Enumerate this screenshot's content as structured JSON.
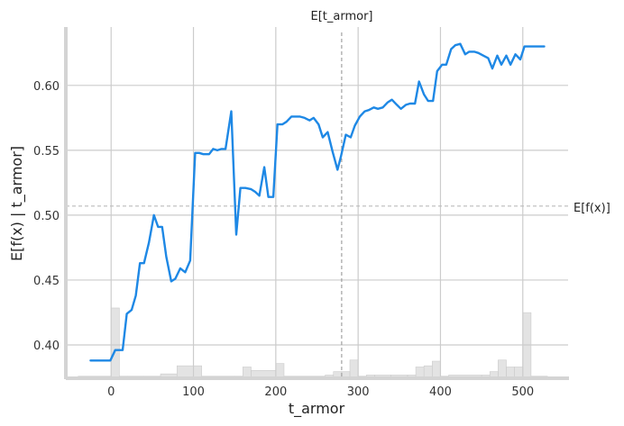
{
  "chart_data": {
    "type": "line",
    "xlabel": "t_armor",
    "ylabel": "E[f(x) | t_armor]",
    "xlim": [
      -55,
      555
    ],
    "ylim": [
      0.375,
      0.645
    ],
    "x_ticks": [
      0,
      100,
      200,
      300,
      400,
      500
    ],
    "x_tick_labels": [
      "0",
      "100",
      "200",
      "300",
      "400",
      "500"
    ],
    "y_ticks": [
      0.4,
      0.45,
      0.5,
      0.55,
      0.6
    ],
    "y_tick_labels": [
      "0.40",
      "0.45",
      "0.50",
      "0.55",
      "0.60"
    ],
    "grid": true,
    "reference_lines": {
      "vertical": {
        "label": "E[t_armor]",
        "x": 280
      },
      "horizontal": {
        "label": "E[f(x)]",
        "y": 0.507
      }
    },
    "series": [
      {
        "color": "#1e88e5",
        "points": [
          [
            -25,
            0.388
          ],
          [
            -1,
            0.388
          ],
          [
            5,
            0.396
          ],
          [
            14,
            0.396
          ],
          [
            19,
            0.424
          ],
          [
            25,
            0.427
          ],
          [
            30,
            0.438
          ],
          [
            35,
            0.463
          ],
          [
            40,
            0.463
          ],
          [
            46,
            0.479
          ],
          [
            52,
            0.5
          ],
          [
            57,
            0.491
          ],
          [
            62,
            0.491
          ],
          [
            67,
            0.468
          ],
          [
            73,
            0.449
          ],
          [
            78,
            0.451
          ],
          [
            84,
            0.459
          ],
          [
            90,
            0.456
          ],
          [
            96,
            0.465
          ],
          [
            102,
            0.548
          ],
          [
            107,
            0.548
          ],
          [
            112,
            0.547
          ],
          [
            119,
            0.547
          ],
          [
            124,
            0.551
          ],
          [
            129,
            0.55
          ],
          [
            134,
            0.551
          ],
          [
            139,
            0.551
          ],
          [
            146,
            0.58
          ],
          [
            152,
            0.485
          ],
          [
            157,
            0.521
          ],
          [
            163,
            0.521
          ],
          [
            170,
            0.52
          ],
          [
            175,
            0.518
          ],
          [
            180,
            0.515
          ],
          [
            186,
            0.537
          ],
          [
            191,
            0.514
          ],
          [
            197,
            0.514
          ],
          [
            202,
            0.57
          ],
          [
            208,
            0.57
          ],
          [
            213,
            0.572
          ],
          [
            219,
            0.576
          ],
          [
            224,
            0.576
          ],
          [
            229,
            0.576
          ],
          [
            235,
            0.575
          ],
          [
            241,
            0.573
          ],
          [
            246,
            0.575
          ],
          [
            252,
            0.57
          ],
          [
            257,
            0.56
          ],
          [
            263,
            0.564
          ],
          [
            269,
            0.549
          ],
          [
            275,
            0.535
          ],
          [
            279,
            0.545
          ],
          [
            285,
            0.562
          ],
          [
            291,
            0.56
          ],
          [
            296,
            0.569
          ],
          [
            302,
            0.576
          ],
          [
            308,
            0.58
          ],
          [
            313,
            0.581
          ],
          [
            319,
            0.583
          ],
          [
            324,
            0.582
          ],
          [
            330,
            0.583
          ],
          [
            336,
            0.587
          ],
          [
            341,
            0.589
          ],
          [
            347,
            0.585
          ],
          [
            352,
            0.582
          ],
          [
            358,
            0.585
          ],
          [
            363,
            0.586
          ],
          [
            369,
            0.586
          ],
          [
            374,
            0.603
          ],
          [
            380,
            0.593
          ],
          [
            385,
            0.588
          ],
          [
            391,
            0.588
          ],
          [
            396,
            0.611
          ],
          [
            402,
            0.616
          ],
          [
            407,
            0.616
          ],
          [
            413,
            0.628
          ],
          [
            418,
            0.631
          ],
          [
            424,
            0.632
          ],
          [
            430,
            0.624
          ],
          [
            435,
            0.626
          ],
          [
            441,
            0.626
          ],
          [
            446,
            0.625
          ],
          [
            452,
            0.623
          ],
          [
            458,
            0.621
          ],
          [
            463,
            0.613
          ],
          [
            469,
            0.623
          ],
          [
            474,
            0.616
          ],
          [
            480,
            0.623
          ],
          [
            485,
            0.616
          ],
          [
            491,
            0.624
          ],
          [
            497,
            0.62
          ],
          [
            502,
            0.63
          ],
          [
            508,
            0.63
          ],
          [
            514,
            0.63
          ],
          [
            520,
            0.63
          ],
          [
            526,
            0.63
          ]
        ]
      }
    ],
    "histogram": {
      "color": "#cccccc",
      "bins": [
        [
          -40,
          0,
          0.01
        ],
        [
          0,
          10,
          0.6
        ],
        [
          10,
          20,
          0.01
        ],
        [
          20,
          40,
          0.01
        ],
        [
          40,
          60,
          0.01
        ],
        [
          60,
          80,
          0.03
        ],
        [
          80,
          100,
          0.1
        ],
        [
          100,
          110,
          0.1
        ],
        [
          110,
          150,
          0.01
        ],
        [
          150,
          160,
          0.01
        ],
        [
          160,
          170,
          0.09
        ],
        [
          170,
          200,
          0.06
        ],
        [
          200,
          210,
          0.12
        ],
        [
          210,
          260,
          0.01
        ],
        [
          260,
          270,
          0.02
        ],
        [
          270,
          280,
          0.05
        ],
        [
          280,
          290,
          0.05
        ],
        [
          290,
          300,
          0.15
        ],
        [
          300,
          310,
          0.01
        ],
        [
          310,
          320,
          0.02
        ],
        [
          320,
          340,
          0.02
        ],
        [
          340,
          360,
          0.02
        ],
        [
          360,
          370,
          0.02
        ],
        [
          370,
          380,
          0.09
        ],
        [
          380,
          390,
          0.1
        ],
        [
          390,
          400,
          0.14
        ],
        [
          400,
          410,
          0.01
        ],
        [
          410,
          450,
          0.02
        ],
        [
          450,
          460,
          0.02
        ],
        [
          460,
          470,
          0.05
        ],
        [
          470,
          480,
          0.15
        ],
        [
          480,
          490,
          0.09
        ],
        [
          490,
          500,
          0.09
        ],
        [
          500,
          510,
          0.56
        ],
        [
          510,
          530,
          0.01
        ]
      ]
    }
  }
}
